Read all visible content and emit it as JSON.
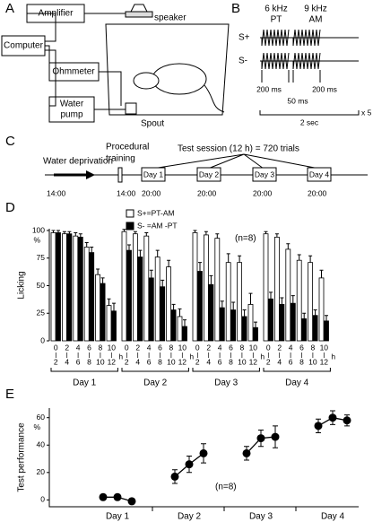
{
  "panel_a": {
    "label": "A",
    "amplifier": "Amplifier",
    "speaker": "speaker",
    "computer": "Computer",
    "ohmmeter": "Ohmmeter",
    "water_pump": [
      "Water",
      "pump"
    ],
    "spout": "Spout"
  },
  "panel_b": {
    "label": "B",
    "pt": [
      "6 kHz",
      "PT"
    ],
    "am": [
      "9 kHz",
      "AM"
    ],
    "s_plus": "S+",
    "s_minus": "S-",
    "dur1": "200 ms",
    "dur2": "200 ms",
    "gap": "50 ms",
    "trial": "2 sec",
    "repeat": "x 5"
  },
  "panel_c": {
    "label": "C",
    "deprivation": "Water deprivation",
    "training": [
      "Procedural",
      "training"
    ],
    "session": "Test session (12 h) = 720 trials",
    "times": [
      "14:00",
      "14:00",
      "20:00",
      "20:00",
      "20:00",
      "20:00"
    ],
    "days": [
      "Day 1",
      "Day 2",
      "Day 3",
      "Day 4"
    ]
  },
  "chart_data": [
    {
      "type": "grouped_bar",
      "panel": "D",
      "annotation": "(n=8)",
      "ylabel": "Licking",
      "yunit": "%",
      "groups": [
        "Day 1",
        "Day 2",
        "Day 3",
        "Day 4"
      ],
      "bin_edges": [
        0,
        2,
        4,
        6,
        8,
        10,
        12
      ],
      "bin_unit": "h",
      "ylim": [
        0,
        100
      ],
      "yticks": [
        0,
        25,
        50,
        75,
        100
      ],
      "series": [
        {
          "name": "S+=PT-AM",
          "color": "#ffffff",
          "values": [
            98,
            97,
            95,
            85,
            60,
            32,
            99,
            97,
            95,
            76,
            67,
            22,
            98,
            96,
            93,
            71,
            71,
            33,
            97,
            94,
            83,
            73,
            71,
            57
          ],
          "errors": [
            2,
            2,
            3,
            4,
            5,
            6,
            2,
            2,
            3,
            6,
            6,
            7,
            2,
            3,
            4,
            8,
            6,
            10,
            2,
            3,
            5,
            5,
            6,
            7
          ]
        },
        {
          "name": "S- =AM -PT",
          "color": "#000000",
          "values": [
            98,
            97,
            94,
            80,
            52,
            27,
            82,
            76,
            57,
            49,
            28,
            13,
            63,
            51,
            30,
            28,
            22,
            12,
            38,
            33,
            34,
            20,
            23,
            18
          ],
          "errors": [
            2,
            2,
            3,
            5,
            5,
            7,
            5,
            6,
            7,
            6,
            5,
            6,
            8,
            8,
            6,
            7,
            6,
            5,
            6,
            6,
            7,
            5,
            5,
            5
          ]
        }
      ]
    },
    {
      "type": "line",
      "panel": "E",
      "annotation": "(n=8)",
      "ylabel": "Test performance",
      "yunit": "%",
      "groups": [
        "Day 1",
        "Day 2",
        "Day 3",
        "Day 4"
      ],
      "color": "#000000",
      "values": [
        2,
        2,
        -1,
        17,
        26,
        34,
        34,
        45,
        46,
        54,
        60,
        58
      ],
      "errors": [
        2,
        2,
        2,
        5,
        6,
        7,
        5,
        6,
        8,
        5,
        5,
        4
      ],
      "ylim": [
        -5,
        67
      ],
      "yticks": [
        0,
        20,
        40,
        60
      ]
    }
  ]
}
